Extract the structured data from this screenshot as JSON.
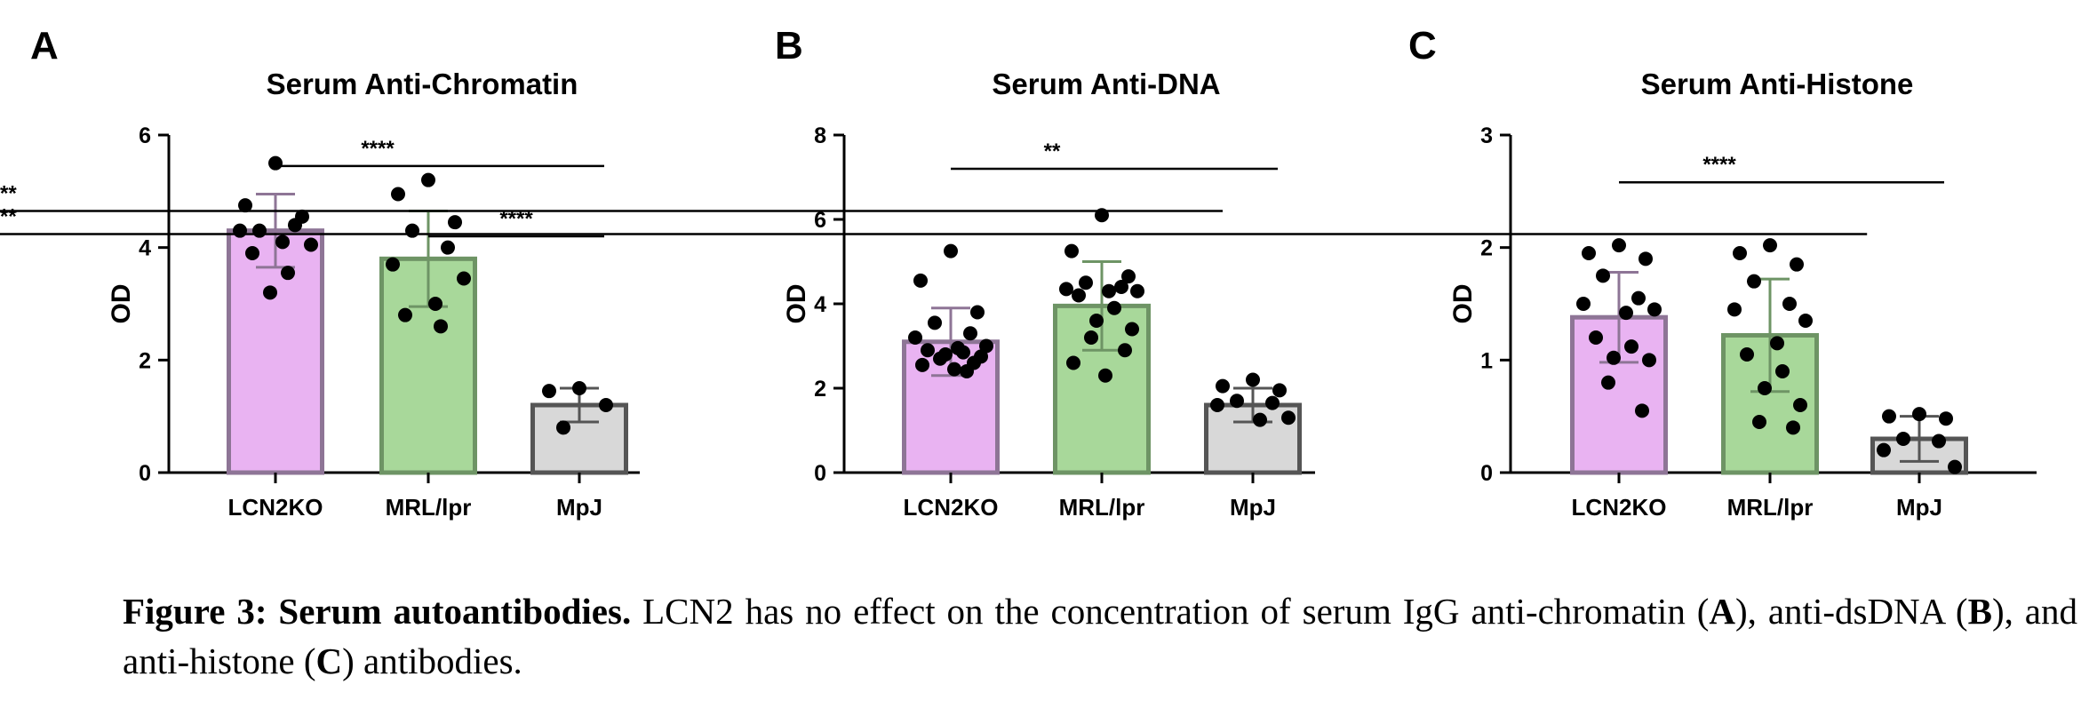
{
  "chart_data": [
    {
      "type": "bar",
      "panel": "A",
      "title": "Serum Anti-Chromatin",
      "ylabel": "OD",
      "xlabel": "",
      "ylim": [
        0,
        6
      ],
      "yticks": [
        "0",
        "2",
        "4",
        "6"
      ],
      "categories": [
        "LCN2KO",
        "MRL/lpr",
        "MpJ"
      ],
      "colors": [
        "#e9b3f2",
        "#a8d89a",
        "#d8d8d8"
      ],
      "edge_colors": [
        "#8e7596",
        "#6e9465",
        "#555555"
      ],
      "values": [
        4.3,
        3.8,
        1.2
      ],
      "sd": [
        0.65,
        0.85,
        0.3
      ],
      "points": [
        [
          5.5,
          4.75,
          4.55,
          4.3,
          4.4,
          4.3,
          4.05,
          4.1,
          3.9,
          3.55,
          3.2
        ],
        [
          5.2,
          4.95,
          4.45,
          4.3,
          4.0,
          3.7,
          3.45,
          3.0,
          2.8,
          2.6
        ],
        [
          1.5,
          1.45,
          1.2,
          0.8
        ]
      ],
      "significance": [
        {
          "from": 0,
          "to": 2,
          "label": "****"
        },
        {
          "from": 1,
          "to": 2,
          "label": "****"
        }
      ]
    },
    {
      "type": "bar",
      "panel": "B",
      "title": "Serum Anti-DNA",
      "ylabel": "OD",
      "xlabel": "",
      "ylim": [
        0,
        8
      ],
      "yticks": [
        "0",
        "2",
        "4",
        "6",
        "8"
      ],
      "categories": [
        "LCN2KO",
        "MRL/lpr",
        "MpJ"
      ],
      "colors": [
        "#e9b3f2",
        "#a8d89a",
        "#d8d8d8"
      ],
      "edge_colors": [
        "#8e7596",
        "#6e9465",
        "#555555"
      ],
      "values": [
        3.1,
        3.95,
        1.6
      ],
      "sd": [
        0.8,
        1.05,
        0.4
      ],
      "points": [
        [
          5.25,
          4.55,
          3.8,
          3.55,
          3.3,
          3.2,
          3.0,
          2.95,
          2.9,
          2.85,
          2.8,
          2.75,
          2.7,
          2.6,
          2.55,
          2.45,
          2.4
        ],
        [
          6.1,
          5.25,
          4.65,
          4.5,
          4.4,
          4.35,
          4.3,
          4.3,
          4.2,
          3.9,
          3.6,
          3.4,
          3.2,
          2.9,
          2.6,
          2.3
        ],
        [
          2.2,
          2.05,
          1.95,
          1.7,
          1.65,
          1.6,
          1.3,
          1.25
        ]
      ],
      "significance": [
        {
          "from": 0,
          "to": 2,
          "label": "**"
        },
        {
          "from": 1.8,
          "to": 2.2,
          "label": "****"
        }
      ]
    },
    {
      "type": "bar",
      "panel": "C",
      "title": "Serum Anti-Histone",
      "ylabel": "OD",
      "xlabel": "",
      "ylim": [
        0,
        3
      ],
      "yticks": [
        "0",
        "1",
        "2",
        "3"
      ],
      "categories": [
        "LCN2KO",
        "MRL/lpr",
        "MpJ"
      ],
      "colors": [
        "#e9b3f2",
        "#a8d89a",
        "#d8d8d8"
      ],
      "edge_colors": [
        "#8e7596",
        "#6e9465",
        "#555555"
      ],
      "values": [
        1.38,
        1.22,
        0.3
      ],
      "sd": [
        0.4,
        0.5,
        0.2
      ],
      "points": [
        [
          2.02,
          1.95,
          1.9,
          1.75,
          1.55,
          1.5,
          1.45,
          1.42,
          1.2,
          1.12,
          1.02,
          1.0,
          0.8,
          0.55
        ],
        [
          2.02,
          1.95,
          1.85,
          1.7,
          1.5,
          1.45,
          1.35,
          1.15,
          1.05,
          0.9,
          0.75,
          0.6,
          0.45,
          0.4
        ],
        [
          0.52,
          0.5,
          0.48,
          0.3,
          0.28,
          0.2,
          0.05
        ]
      ],
      "significance": [
        {
          "from": 0,
          "to": 2,
          "label": "****"
        },
        {
          "from": 1.65,
          "to": 2.12,
          "label": "****"
        }
      ]
    }
  ],
  "caption": {
    "figure_label": "Figure 3: Serum autoantibodies.",
    "text_1": " LCN2 has no effect on the concentration of serum IgG anti-chromatin (",
    "panel_a": "A",
    "text_2": "), anti-dsDNA (",
    "panel_b": "B",
    "text_3": "), and anti-histone (",
    "panel_c": "C",
    "text_4": ") antibodies."
  }
}
